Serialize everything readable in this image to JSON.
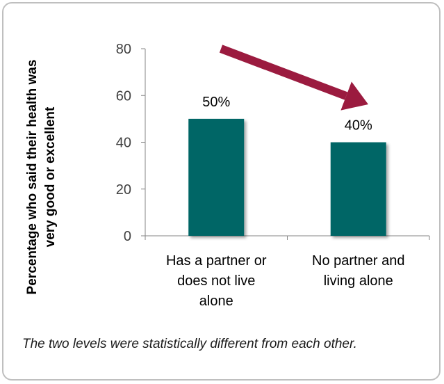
{
  "chart_data": {
    "type": "bar",
    "categories": [
      [
        "Has a partner or",
        "does not live",
        "alone"
      ],
      [
        "No partner and",
        "living alone"
      ]
    ],
    "values": [
      50,
      40
    ],
    "data_labels": [
      "50%",
      "40%"
    ],
    "ylabel": [
      "Percentage who said their health was",
      "very good or excellent"
    ],
    "ylim": [
      0,
      80
    ],
    "yticks": [
      0,
      20,
      40,
      60,
      80
    ],
    "grid": false,
    "legend": "none",
    "bar_color": "#006666",
    "arrow_color": "#9b1b3f",
    "arrow": "decrease"
  },
  "footnote": "The two levels were statistically different from each other."
}
